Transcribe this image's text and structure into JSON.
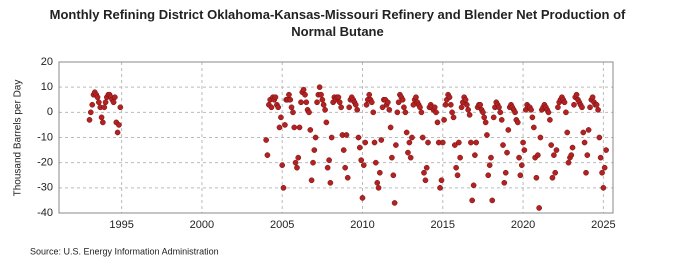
{
  "chart_data": {
    "type": "scatter",
    "title": "Monthly Refining District Oklahoma-Kansas-Missouri Refinery and Blender Net Production of Normal Butane",
    "y_label": "Thousand Barrels per Day",
    "source": "Source: U.S. Energy Information Administration",
    "color": "#b22222",
    "grid": true,
    "xlim": [
      1991.1,
      2025.6
    ],
    "ylim": [
      -40,
      20
    ],
    "xticks": [
      1995,
      2000,
      2005,
      2010,
      2015,
      2020,
      2025
    ],
    "yticks": [
      -40,
      -30,
      -20,
      -10,
      0,
      10,
      20
    ],
    "x": [
      1993.0,
      1993.08,
      1993.17,
      1993.25,
      1993.33,
      1993.42,
      1993.5,
      1993.58,
      1993.67,
      1993.75,
      1993.83,
      1993.92,
      1994.0,
      1994.08,
      1994.17,
      1994.25,
      1994.33,
      1994.42,
      1994.5,
      1994.58,
      1994.67,
      1994.75,
      1994.83,
      1994.92,
      2004.0,
      2004.08,
      2004.17,
      2004.25,
      2004.33,
      2004.42,
      2004.5,
      2004.58,
      2004.67,
      2004.75,
      2004.83,
      2004.92,
      2005.0,
      2005.08,
      2005.17,
      2005.25,
      2005.33,
      2005.42,
      2005.5,
      2005.58,
      2005.67,
      2005.75,
      2005.83,
      2005.92,
      2006.0,
      2006.08,
      2006.17,
      2006.25,
      2006.33,
      2006.42,
      2006.5,
      2006.58,
      2006.67,
      2006.75,
      2006.83,
      2006.92,
      2007.0,
      2007.08,
      2007.17,
      2007.25,
      2007.33,
      2007.42,
      2007.5,
      2007.58,
      2007.67,
      2007.75,
      2007.83,
      2007.92,
      2008.0,
      2008.08,
      2008.17,
      2008.25,
      2008.33,
      2008.42,
      2008.5,
      2008.58,
      2008.67,
      2008.75,
      2008.83,
      2008.92,
      2009.0,
      2009.08,
      2009.17,
      2009.25,
      2009.33,
      2009.42,
      2009.5,
      2009.58,
      2009.67,
      2009.75,
      2009.83,
      2009.92,
      2010.0,
      2010.08,
      2010.17,
      2010.25,
      2010.33,
      2010.42,
      2010.5,
      2010.58,
      2010.67,
      2010.75,
      2010.83,
      2010.92,
      2011.0,
      2011.08,
      2011.17,
      2011.25,
      2011.33,
      2011.42,
      2011.5,
      2011.58,
      2011.67,
      2011.75,
      2011.83,
      2011.92,
      2012.0,
      2012.08,
      2012.17,
      2012.25,
      2012.33,
      2012.42,
      2012.5,
      2012.58,
      2012.67,
      2012.75,
      2012.83,
      2012.92,
      2013.0,
      2013.08,
      2013.17,
      2013.25,
      2013.33,
      2013.42,
      2013.5,
      2013.58,
      2013.67,
      2013.75,
      2013.83,
      2013.92,
      2014.0,
      2014.08,
      2014.17,
      2014.25,
      2014.33,
      2014.42,
      2014.5,
      2014.58,
      2014.67,
      2014.75,
      2014.83,
      2014.92,
      2015.0,
      2015.08,
      2015.17,
      2015.25,
      2015.33,
      2015.42,
      2015.5,
      2015.58,
      2015.67,
      2015.75,
      2015.83,
      2015.92,
      2016.0,
      2016.08,
      2016.17,
      2016.25,
      2016.33,
      2016.42,
      2016.5,
      2016.58,
      2016.67,
      2016.75,
      2016.83,
      2016.92,
      2017.0,
      2017.08,
      2017.17,
      2017.25,
      2017.33,
      2017.42,
      2017.5,
      2017.58,
      2017.67,
      2017.75,
      2017.83,
      2017.92,
      2018.0,
      2018.08,
      2018.17,
      2018.25,
      2018.33,
      2018.42,
      2018.5,
      2018.58,
      2018.67,
      2018.75,
      2018.83,
      2018.92,
      2019.0,
      2019.08,
      2019.17,
      2019.25,
      2019.33,
      2019.42,
      2019.5,
      2019.58,
      2019.67,
      2019.75,
      2019.83,
      2019.92,
      2020.0,
      2020.08,
      2020.17,
      2020.25,
      2020.33,
      2020.42,
      2020.5,
      2020.58,
      2020.67,
      2020.75,
      2020.83,
      2020.92,
      2021.0,
      2021.08,
      2021.17,
      2021.25,
      2021.33,
      2021.42,
      2021.5,
      2021.58,
      2021.67,
      2021.75,
      2021.83,
      2021.92,
      2022.0,
      2022.08,
      2022.17,
      2022.25,
      2022.33,
      2022.42,
      2022.5,
      2022.58,
      2022.67,
      2022.75,
      2022.83,
      2022.92,
      2023.0,
      2023.08,
      2023.17,
      2023.25,
      2023.33,
      2023.42,
      2023.5,
      2023.58,
      2023.67,
      2023.75,
      2023.83,
      2023.92,
      2024.0,
      2024.08,
      2024.17,
      2024.25,
      2024.33,
      2024.42,
      2024.5,
      2024.58,
      2024.67,
      2024.75,
      2024.83,
      2024.92,
      2025.0,
      2025.08,
      2025.17
    ],
    "values": [
      -3,
      0,
      3,
      7,
      8,
      7,
      6,
      4,
      2,
      -2,
      -4,
      2,
      4,
      6,
      7,
      7,
      6,
      5,
      4,
      6,
      -4,
      -8,
      -5,
      2,
      -11,
      -17,
      3,
      5,
      2,
      6,
      5,
      6,
      3,
      2,
      -6,
      -2,
      -21,
      -30,
      -5,
      5,
      5,
      7,
      5,
      2,
      0,
      -6,
      -20,
      -22,
      -18,
      -6,
      4,
      8,
      9,
      7,
      4,
      1,
      0,
      -7,
      -27,
      -20,
      -15,
      -10,
      4,
      7,
      10,
      7,
      5,
      3,
      1,
      -4,
      -22,
      -19,
      -28,
      -10,
      4,
      6,
      5,
      6,
      6,
      4,
      2,
      -9,
      -15,
      -22,
      -9,
      -26,
      2,
      5,
      6,
      5,
      4,
      3,
      1,
      -10,
      -14,
      -19,
      -34,
      -21,
      -12,
      3,
      5,
      7,
      5,
      4,
      0,
      -12,
      -20,
      -28,
      -30,
      -24,
      -11,
      2,
      5,
      5,
      3,
      4,
      1,
      -6,
      -18,
      -25,
      -36,
      -13,
      0,
      4,
      7,
      6,
      5,
      2,
      0,
      -8,
      -16,
      -12,
      -18,
      -10,
      3,
      5,
      6,
      4,
      3,
      2,
      0,
      -10,
      -24,
      -27,
      -22,
      -12,
      2,
      3,
      2,
      1,
      2,
      0,
      -4,
      -12,
      -30,
      -27,
      -12,
      -3,
      3,
      5,
      7,
      6,
      3,
      0,
      -2,
      -13,
      -22,
      -25,
      -12,
      -18,
      2,
      4,
      6,
      5,
      3,
      1,
      -1,
      -12,
      -35,
      -29,
      -17,
      -12,
      2,
      3,
      3,
      1,
      0,
      -2,
      -4,
      -9,
      -25,
      -21,
      -18,
      -35,
      -2,
      2,
      4,
      3,
      2,
      0,
      -3,
      -13,
      -28,
      -24,
      -16,
      -7,
      2,
      3,
      2,
      1,
      0,
      -3,
      -4,
      -18,
      -25,
      -21,
      -12,
      -15,
      1,
      3,
      2,
      2,
      1,
      -2,
      -6,
      -18,
      -26,
      -17,
      -38,
      -10,
      1,
      2,
      3,
      2,
      1,
      0,
      -3,
      -13,
      -26,
      -17,
      -24,
      -15,
      2,
      4,
      5,
      6,
      5,
      4,
      0,
      -8,
      -20,
      -18,
      -17,
      -14,
      3,
      6,
      7,
      5,
      4,
      3,
      2,
      -8,
      -12,
      -24,
      -17,
      -7,
      2,
      5,
      6,
      4,
      3,
      3,
      1,
      -10,
      -18,
      -24,
      -30,
      -22,
      -15
    ]
  }
}
